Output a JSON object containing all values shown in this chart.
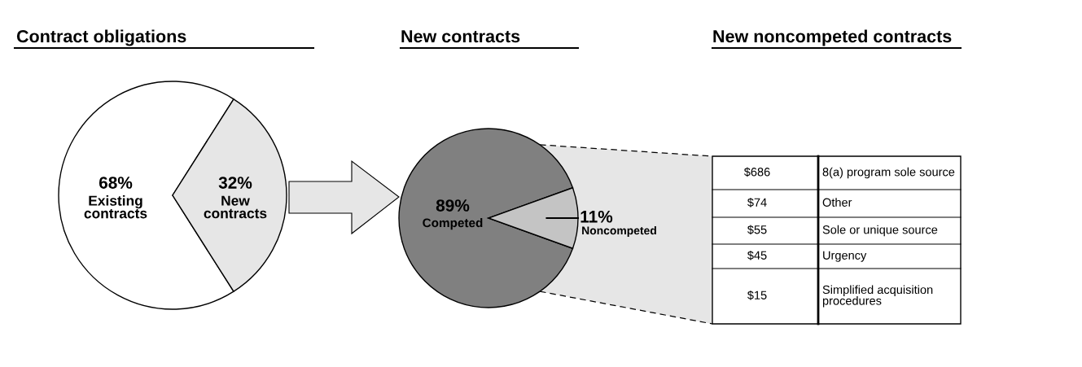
{
  "chart_data": [
    {
      "type": "pie",
      "title": "Contract obligations",
      "categories": [
        "Existing\ncontracts",
        "New\ncontracts"
      ],
      "values": [
        68,
        32
      ],
      "colors": [
        "#ffffff",
        "#e6e6e6"
      ],
      "value_labels": [
        "68%",
        "32%"
      ]
    },
    {
      "type": "pie",
      "title": "New contracts",
      "categories": [
        "Competed",
        "Noncompeted"
      ],
      "values": [
        89,
        11
      ],
      "colors": [
        "#808080",
        "#c4c4c4"
      ],
      "value_labels": [
        "89%",
        "11%"
      ]
    },
    {
      "type": "other",
      "title": "New noncompeted contracts",
      "categories": [
        "8(a) program sole source",
        "Other",
        "Sole or unique source",
        "Urgency",
        "Simplified acquisition\nprocedures"
      ],
      "value_labels": [
        "$686",
        "$74",
        "$55",
        "$45",
        "$15"
      ]
    }
  ]
}
